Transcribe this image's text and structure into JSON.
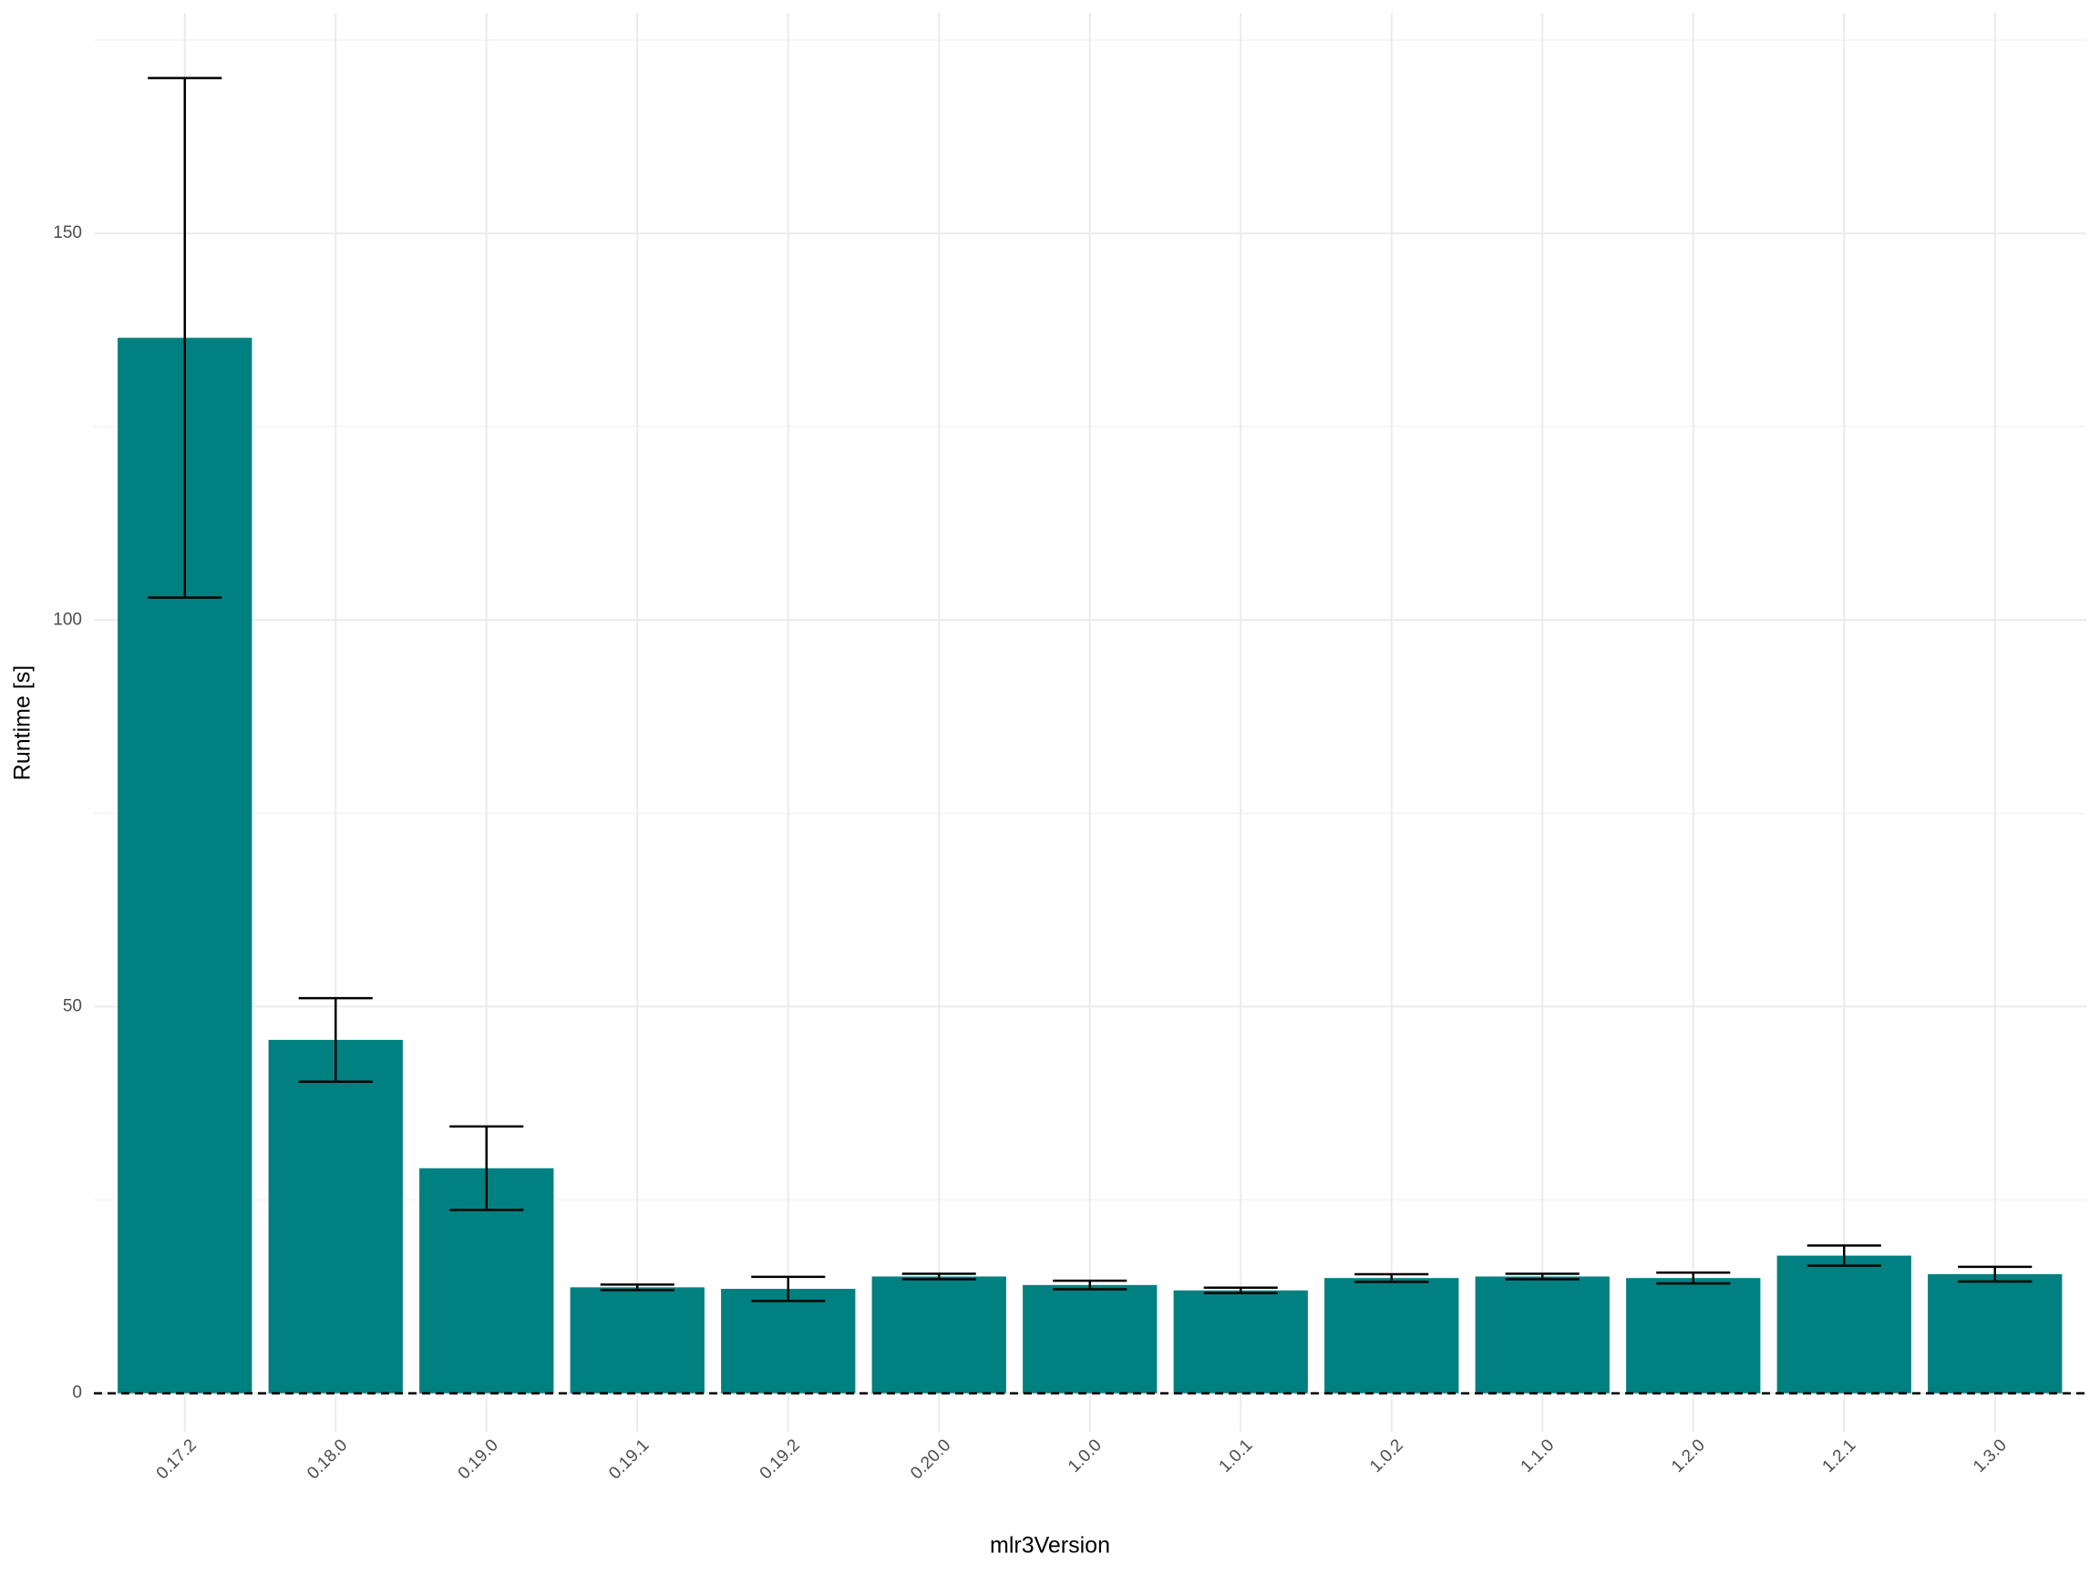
{
  "chart_data": {
    "type": "bar",
    "x_label": "mlr3Version",
    "y_label": "Runtime [s]",
    "categories": [
      "0.17.2",
      "0.18.0",
      "0.19.0",
      "0.19.1",
      "0.19.2",
      "0.20.0",
      "1.0.0",
      "1.0.1",
      "1.0.2",
      "1.1.0",
      "1.2.0",
      "1.2.1",
      "1.3.0"
    ],
    "values": [
      136.5,
      45.7,
      29.1,
      13.7,
      13.5,
      15.1,
      14.0,
      13.3,
      14.9,
      15.1,
      14.9,
      17.8,
      15.4
    ],
    "errors": [
      33.6,
      5.4,
      5.4,
      0.35,
      1.55,
      0.35,
      0.55,
      0.35,
      0.5,
      0.35,
      0.7,
      1.3,
      0.95
    ],
    "color": "#008080",
    "error_color": "#000000",
    "reference_line": 0,
    "ylim": [
      -5,
      175
    ],
    "yticks": [
      0,
      50,
      100,
      150
    ],
    "minor_yticks": [
      25,
      75,
      125,
      175
    ],
    "grid": true
  }
}
